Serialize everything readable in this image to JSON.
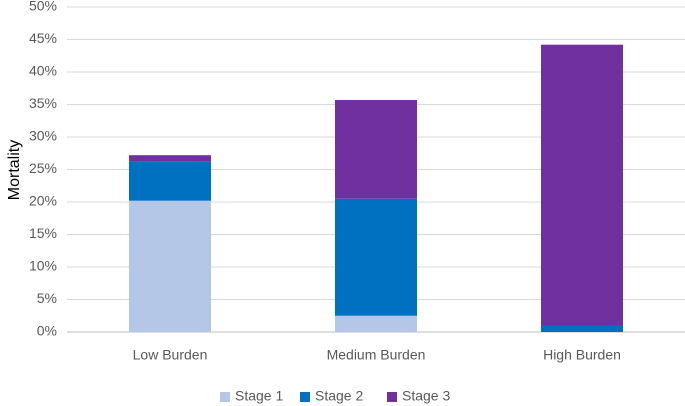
{
  "chart_data": {
    "type": "bar",
    "stacked": true,
    "categories": [
      "Low Burden",
      "Medium Burden",
      "High Burden"
    ],
    "series": [
      {
        "name": "Stage 1",
        "color": "#b4c7e7",
        "values": [
          0.202,
          0.025,
          0.0
        ]
      },
      {
        "name": "Stage 2",
        "color": "#0070c0",
        "values": [
          0.06,
          0.18,
          0.01
        ]
      },
      {
        "name": "Stage 3",
        "color": "#7030a0",
        "values": [
          0.01,
          0.152,
          0.432
        ]
      }
    ],
    "title": "",
    "xlabel": "",
    "ylabel": "Mortality",
    "ylim": [
      0,
      0.5
    ],
    "yticks": [
      0,
      0.05,
      0.1,
      0.15,
      0.2,
      0.25,
      0.3,
      0.35,
      0.4,
      0.45,
      0.5
    ],
    "ytick_labels": [
      "0%",
      "5%",
      "10%",
      "15%",
      "20%",
      "25%",
      "30%",
      "35%",
      "40%",
      "45%",
      "50%"
    ],
    "grid": true,
    "legend": "bottom"
  }
}
